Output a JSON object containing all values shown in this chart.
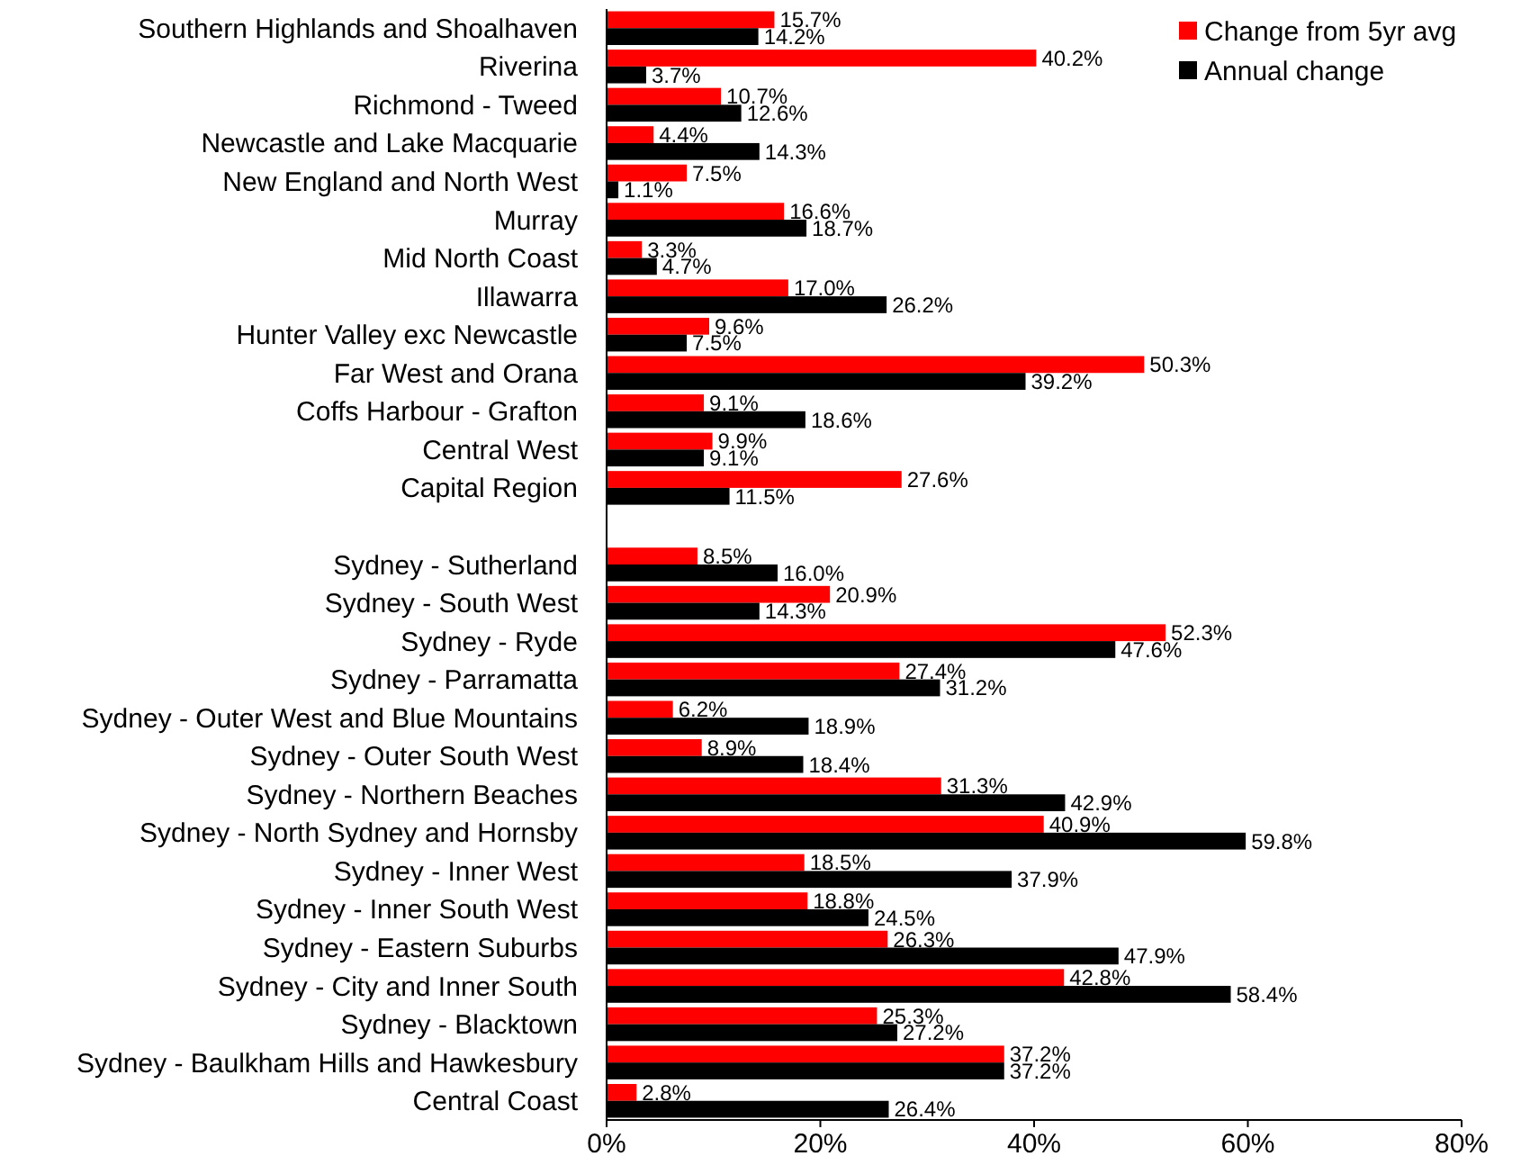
{
  "chart_data": {
    "type": "bar",
    "orientation": "horizontal",
    "legend": "top right",
    "categories": [
      "Southern Highlands and Shoalhaven",
      "Riverina",
      "Richmond - Tweed",
      "Newcastle and Lake Macquarie",
      "New England and North West",
      "Murray",
      "Mid North Coast",
      "Illawarra",
      "Hunter Valley exc Newcastle",
      "Far West and Orana",
      "Coffs Harbour - Grafton",
      "Central West",
      "Capital Region",
      null,
      "Sydney - Sutherland",
      "Sydney - South West",
      "Sydney - Ryde",
      "Sydney - Parramatta",
      "Sydney - Outer West and Blue Mountains",
      "Sydney - Outer South West",
      "Sydney - Northern Beaches",
      "Sydney - North Sydney and Hornsby",
      "Sydney - Inner West",
      "Sydney - Inner South West",
      "Sydney - Eastern Suburbs",
      "Sydney - City and Inner South",
      "Sydney - Blacktown",
      "Sydney - Baulkham Hills and Hawkesbury",
      "Central Coast"
    ],
    "series": [
      {
        "name": "Change from 5yr avg",
        "color": "#ff0000",
        "values": [
          15.7,
          40.2,
          10.7,
          4.4,
          7.5,
          16.6,
          3.3,
          17.0,
          9.6,
          50.3,
          9.1,
          9.9,
          27.6,
          null,
          8.5,
          20.9,
          52.3,
          27.4,
          6.2,
          8.9,
          31.3,
          40.9,
          18.5,
          18.8,
          26.3,
          42.8,
          25.3,
          37.2,
          2.8
        ],
        "value_labels": [
          "15.7%",
          "40.2%",
          "10.7%",
          "4.4%",
          "7.5%",
          "16.6%",
          "3.3%",
          "17.0%",
          "9.6%",
          "50.3%",
          "9.1%",
          "9.9%",
          "27.6%",
          null,
          "8.5%",
          "20.9%",
          "52.3%",
          "27.4%",
          "6.2%",
          "8.9%",
          "31.3%",
          "40.9%",
          "18.5%",
          "18.8%",
          "26.3%",
          "42.8%",
          "25.3%",
          "37.2%",
          "2.8%"
        ]
      },
      {
        "name": "Annual change",
        "color": "#000000",
        "values": [
          14.2,
          3.7,
          12.6,
          14.3,
          1.1,
          18.7,
          4.7,
          26.2,
          7.5,
          39.2,
          18.6,
          9.1,
          11.5,
          null,
          16.0,
          14.3,
          47.6,
          31.2,
          18.9,
          18.4,
          42.9,
          59.8,
          37.9,
          24.5,
          47.9,
          58.4,
          27.2,
          37.2,
          26.4
        ],
        "value_labels": [
          "14.2%",
          "3.7%",
          "12.6%",
          "14.3%",
          "1.1%",
          "18.7%",
          "4.7%",
          "26.2%",
          "7.5%",
          "39.2%",
          "18.6%",
          "9.1%",
          "11.5%",
          null,
          "16.0%",
          "14.3%",
          "47.6%",
          "31.2%",
          "18.9%",
          "18.4%",
          "42.9%",
          "59.8%",
          "37.9%",
          "24.5%",
          "47.9%",
          "58.4%",
          "27.2%",
          "37.2%",
          "26.4%"
        ]
      }
    ],
    "xlim": [
      0,
      80
    ],
    "xticks": [
      {
        "value": 0,
        "label": "0%"
      },
      {
        "value": 20,
        "label": "20%"
      },
      {
        "value": 40,
        "label": "40%"
      },
      {
        "value": 60,
        "label": "60%"
      },
      {
        "value": 80,
        "label": "80%"
      }
    ]
  }
}
